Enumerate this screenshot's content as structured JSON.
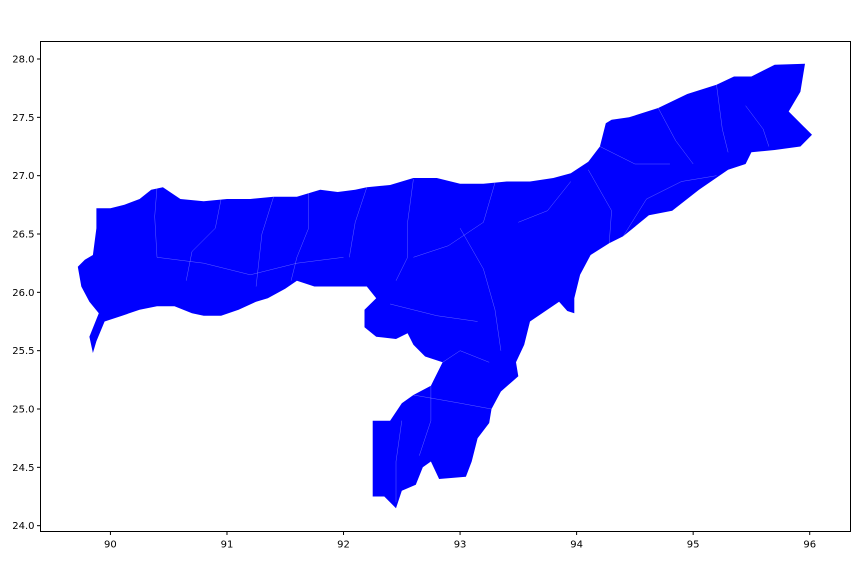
{
  "map": {
    "fill_color": "#0000ff",
    "boundary_color": "#ffffff",
    "background_color": "#ffffff",
    "x_axis": {
      "range": [
        89.4,
        96.35
      ],
      "ticks": [
        90,
        91,
        92,
        93,
        94,
        95,
        96
      ],
      "tick_labels": [
        "90",
        "91",
        "92",
        "93",
        "94",
        "95",
        "96"
      ]
    },
    "y_axis": {
      "range": [
        23.95,
        28.15
      ],
      "ticks": [
        24.0,
        24.5,
        25.0,
        25.5,
        26.0,
        26.5,
        27.0,
        27.5,
        28.0
      ],
      "tick_labels": [
        "24.0",
        "24.5",
        "25.0",
        "25.5",
        "26.0",
        "26.5",
        "27.0",
        "27.5",
        "28.0"
      ]
    },
    "outline_lonlat": [
      [
        95.7,
        27.95
      ],
      [
        95.96,
        27.96
      ],
      [
        95.92,
        27.72
      ],
      [
        95.82,
        27.55
      ],
      [
        95.95,
        27.42
      ],
      [
        96.02,
        27.35
      ],
      [
        95.92,
        27.25
      ],
      [
        95.7,
        27.22
      ],
      [
        95.5,
        27.2
      ],
      [
        95.45,
        27.1
      ],
      [
        95.3,
        27.05
      ],
      [
        95.05,
        26.88
      ],
      [
        94.82,
        26.7
      ],
      [
        94.62,
        26.66
      ],
      [
        94.4,
        26.48
      ],
      [
        94.28,
        26.42
      ],
      [
        94.12,
        26.32
      ],
      [
        94.03,
        26.15
      ],
      [
        93.98,
        25.95
      ],
      [
        93.98,
        25.82
      ],
      [
        93.92,
        25.84
      ],
      [
        93.85,
        25.92
      ],
      [
        93.6,
        25.75
      ],
      [
        93.55,
        25.55
      ],
      [
        93.48,
        25.4
      ],
      [
        93.5,
        25.28
      ],
      [
        93.35,
        25.15
      ],
      [
        93.27,
        25.0
      ],
      [
        93.25,
        24.88
      ],
      [
        93.15,
        24.75
      ],
      [
        93.1,
        24.55
      ],
      [
        93.05,
        24.42
      ],
      [
        92.82,
        24.4
      ],
      [
        92.75,
        24.55
      ],
      [
        92.68,
        24.5
      ],
      [
        92.62,
        24.35
      ],
      [
        92.5,
        24.3
      ],
      [
        92.45,
        24.15
      ],
      [
        92.35,
        24.25
      ],
      [
        92.25,
        24.25
      ],
      [
        92.25,
        24.65
      ],
      [
        92.25,
        24.9
      ],
      [
        92.4,
        24.9
      ],
      [
        92.5,
        25.05
      ],
      [
        92.6,
        25.12
      ],
      [
        92.75,
        25.2
      ],
      [
        92.85,
        25.4
      ],
      [
        92.7,
        25.45
      ],
      [
        92.6,
        25.55
      ],
      [
        92.55,
        25.65
      ],
      [
        92.45,
        25.6
      ],
      [
        92.28,
        25.62
      ],
      [
        92.18,
        25.7
      ],
      [
        92.18,
        25.85
      ],
      [
        92.28,
        25.95
      ],
      [
        92.2,
        26.05
      ],
      [
        91.9,
        26.05
      ],
      [
        91.75,
        26.05
      ],
      [
        91.6,
        26.1
      ],
      [
        91.5,
        26.03
      ],
      [
        91.35,
        25.95
      ],
      [
        91.25,
        25.92
      ],
      [
        91.1,
        25.85
      ],
      [
        90.95,
        25.8
      ],
      [
        90.8,
        25.8
      ],
      [
        90.7,
        25.82
      ],
      [
        90.55,
        25.88
      ],
      [
        90.4,
        25.88
      ],
      [
        90.25,
        25.85
      ],
      [
        90.1,
        25.8
      ],
      [
        89.95,
        25.75
      ],
      [
        89.88,
        25.58
      ],
      [
        89.85,
        25.48
      ],
      [
        89.82,
        25.62
      ],
      [
        89.9,
        25.82
      ],
      [
        89.82,
        25.92
      ],
      [
        89.75,
        26.05
      ],
      [
        89.72,
        26.22
      ],
      [
        89.78,
        26.28
      ],
      [
        89.85,
        26.32
      ],
      [
        89.88,
        26.55
      ],
      [
        89.88,
        26.72
      ],
      [
        90.0,
        26.72
      ],
      [
        90.12,
        26.75
      ],
      [
        90.25,
        26.8
      ],
      [
        90.35,
        26.88
      ],
      [
        90.45,
        26.9
      ],
      [
        90.6,
        26.8
      ],
      [
        90.8,
        26.78
      ],
      [
        91.0,
        26.8
      ],
      [
        91.2,
        26.8
      ],
      [
        91.4,
        26.82
      ],
      [
        91.6,
        26.82
      ],
      [
        91.8,
        26.88
      ],
      [
        91.95,
        26.86
      ],
      [
        92.1,
        26.88
      ],
      [
        92.2,
        26.9
      ],
      [
        92.4,
        26.92
      ],
      [
        92.6,
        26.98
      ],
      [
        92.8,
        26.98
      ],
      [
        93.0,
        26.93
      ],
      [
        93.2,
        26.93
      ],
      [
        93.4,
        26.95
      ],
      [
        93.6,
        26.95
      ],
      [
        93.8,
        26.98
      ],
      [
        93.95,
        27.02
      ],
      [
        94.1,
        27.12
      ],
      [
        94.2,
        27.25
      ],
      [
        94.25,
        27.45
      ],
      [
        94.3,
        27.48
      ],
      [
        94.45,
        27.5
      ],
      [
        94.7,
        27.58
      ],
      [
        94.95,
        27.7
      ],
      [
        95.2,
        27.78
      ],
      [
        95.35,
        27.85
      ],
      [
        95.5,
        27.85
      ]
    ],
    "inner_boundaries_lonlat": [
      [
        [
          90.4,
          26.9
        ],
        [
          90.38,
          26.65
        ],
        [
          90.4,
          26.3
        ]
      ],
      [
        [
          90.95,
          26.8
        ],
        [
          90.9,
          26.55
        ],
        [
          90.7,
          26.35
        ],
        [
          90.65,
          26.1
        ]
      ],
      [
        [
          91.4,
          26.82
        ],
        [
          91.3,
          26.5
        ],
        [
          91.25,
          26.05
        ]
      ],
      [
        [
          91.7,
          26.85
        ],
        [
          91.7,
          26.55
        ],
        [
          91.6,
          26.3
        ],
        [
          91.55,
          26.1
        ]
      ],
      [
        [
          92.2,
          26.9
        ],
        [
          92.1,
          26.6
        ],
        [
          92.05,
          26.3
        ]
      ],
      [
        [
          92.6,
          26.97
        ],
        [
          92.55,
          26.6
        ],
        [
          92.55,
          26.3
        ],
        [
          92.45,
          26.1
        ]
      ],
      [
        [
          93.3,
          26.94
        ],
        [
          93.2,
          26.6
        ],
        [
          92.9,
          26.4
        ],
        [
          92.6,
          26.3
        ]
      ],
      [
        [
          93.95,
          26.95
        ],
        [
          93.75,
          26.7
        ],
        [
          93.5,
          26.6
        ]
      ],
      [
        [
          93.0,
          26.55
        ],
        [
          93.2,
          26.2
        ],
        [
          93.3,
          25.85
        ],
        [
          93.35,
          25.5
        ]
      ],
      [
        [
          92.4,
          25.9
        ],
        [
          92.8,
          25.8
        ],
        [
          93.15,
          25.75
        ]
      ],
      [
        [
          92.85,
          25.4
        ],
        [
          93.0,
          25.5
        ],
        [
          93.25,
          25.4
        ]
      ],
      [
        [
          92.6,
          25.12
        ],
        [
          93.0,
          25.05
        ],
        [
          93.27,
          25.0
        ]
      ],
      [
        [
          92.75,
          25.2
        ],
        [
          92.75,
          24.9
        ],
        [
          92.65,
          24.6
        ]
      ],
      [
        [
          92.5,
          24.9
        ],
        [
          92.45,
          24.55
        ],
        [
          92.45,
          24.2
        ]
      ],
      [
        [
          94.2,
          27.25
        ],
        [
          94.5,
          27.1
        ],
        [
          94.8,
          27.1
        ]
      ],
      [
        [
          94.7,
          27.58
        ],
        [
          94.85,
          27.3
        ],
        [
          95.0,
          27.1
        ]
      ],
      [
        [
          95.2,
          27.78
        ],
        [
          95.25,
          27.4
        ],
        [
          95.3,
          27.2
        ]
      ],
      [
        [
          95.45,
          27.6
        ],
        [
          95.6,
          27.4
        ],
        [
          95.65,
          27.25
        ]
      ],
      [
        [
          94.4,
          26.48
        ],
        [
          94.6,
          26.8
        ],
        [
          94.9,
          26.95
        ],
        [
          95.2,
          27.0
        ]
      ],
      [
        [
          94.1,
          27.05
        ],
        [
          94.3,
          26.7
        ],
        [
          94.28,
          26.42
        ]
      ],
      [
        [
          90.4,
          26.3
        ],
        [
          90.8,
          26.25
        ],
        [
          91.2,
          26.15
        ],
        [
          91.6,
          26.25
        ],
        [
          92.0,
          26.3
        ]
      ]
    ]
  }
}
